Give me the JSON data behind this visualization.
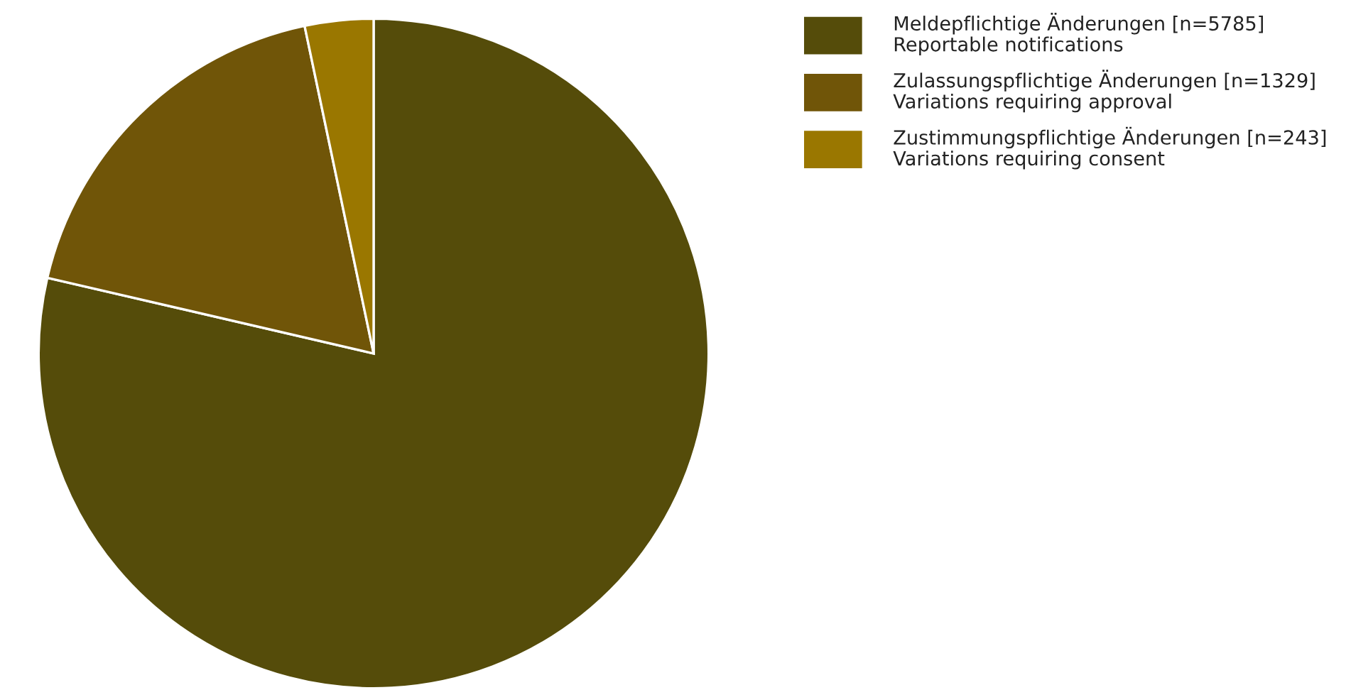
{
  "chart_data": {
    "type": "pie",
    "categories": [
      "Meldepflichtige Änderungen [n=5785]\nReportable notifications",
      "Zulassungspflichtige Änderungen [n=1329]\nVariations requiring approval",
      "Zustimmungspflichtige Änderungen [n=243]\nVariations requiring consent"
    ],
    "values": [
      5785,
      1329,
      243
    ],
    "colors": [
      "#554c0a",
      "#705508",
      "#9a7700"
    ],
    "legend": "top right"
  }
}
